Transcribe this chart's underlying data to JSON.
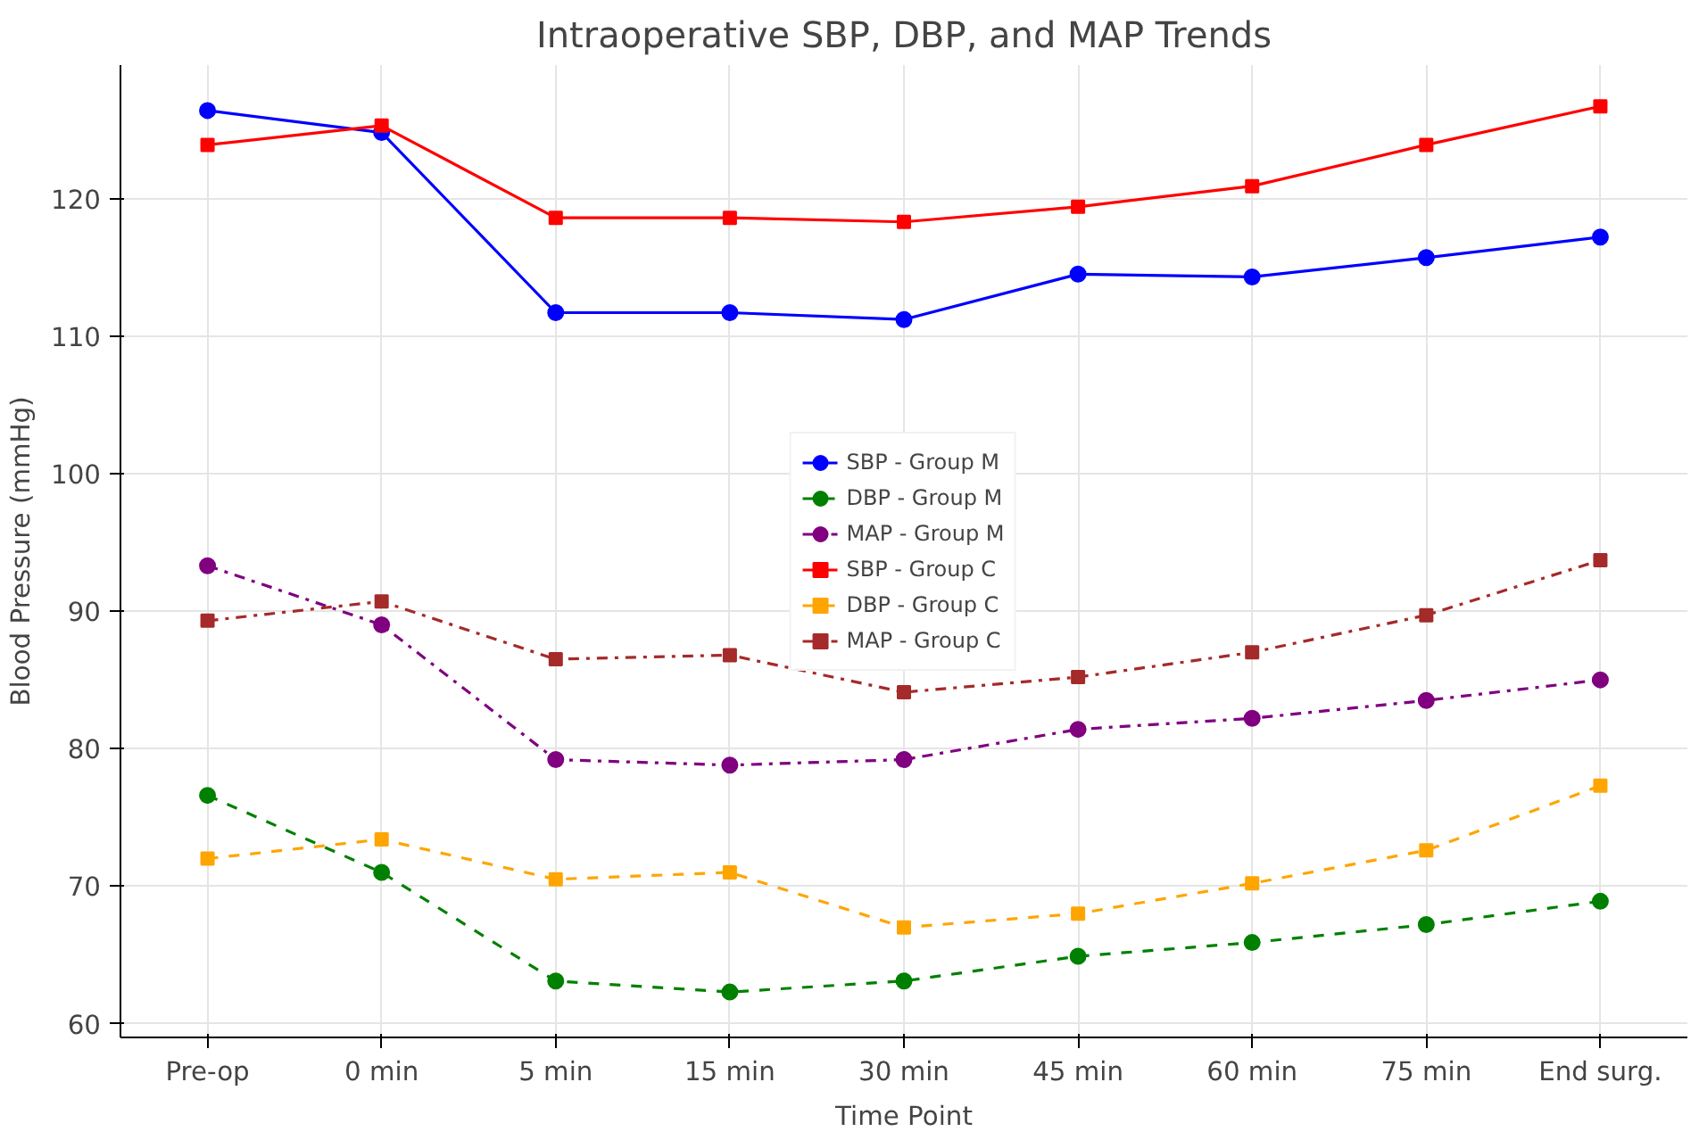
{
  "chart_data": {
    "type": "line",
    "title": "Intraoperative SBP, DBP, and MAP Trends",
    "xlabel": "Time Point",
    "ylabel": "Blood Pressure (mmHg)",
    "categories": [
      "Pre-op",
      "0 min",
      "5 min",
      "15 min",
      "30 min",
      "45 min",
      "60 min",
      "75 min",
      "End surg."
    ],
    "ylim": [
      59,
      129.7
    ],
    "yticks": [
      60,
      70,
      80,
      90,
      100,
      110,
      120
    ],
    "grid": true,
    "legend": "center",
    "series": [
      {
        "name": "SBP - Group M",
        "color": "#0000ff",
        "marker": "circle",
        "line_style": "solid",
        "values": [
          126.4,
          124.8,
          111.7,
          111.7,
          111.2,
          114.5,
          114.3,
          115.7,
          117.2
        ]
      },
      {
        "name": "DBP - Group M",
        "color": "#008000",
        "marker": "circle",
        "line_style": "dashed",
        "values": [
          76.6,
          71.0,
          63.1,
          62.3,
          63.1,
          64.9,
          65.9,
          67.2,
          68.9
        ]
      },
      {
        "name": "MAP - Group M",
        "color": "#800080",
        "marker": "circle",
        "line_style": "dashdot",
        "values": [
          93.3,
          89.0,
          79.2,
          78.8,
          79.2,
          81.4,
          82.2,
          83.5,
          85.0
        ]
      },
      {
        "name": "SBP - Group C",
        "color": "#ff0000",
        "marker": "square",
        "line_style": "solid",
        "values": [
          123.9,
          125.3,
          118.6,
          118.6,
          118.3,
          119.4,
          120.9,
          123.9,
          126.7
        ]
      },
      {
        "name": "DBP - Group C",
        "color": "#ffa500",
        "marker": "square",
        "line_style": "dashed",
        "values": [
          72.0,
          73.4,
          70.5,
          71.0,
          67.0,
          68.0,
          70.2,
          72.6,
          77.3
        ]
      },
      {
        "name": "MAP - Group C",
        "color": "#a52a2a",
        "marker": "square",
        "line_style": "dashdot",
        "values": [
          89.3,
          90.7,
          86.5,
          86.8,
          84.1,
          85.2,
          87.0,
          89.7,
          93.7
        ]
      }
    ]
  }
}
